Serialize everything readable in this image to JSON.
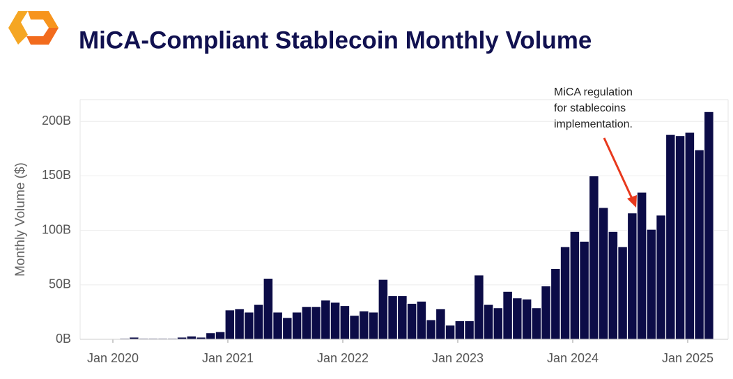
{
  "chart_data": {
    "type": "bar",
    "title": "MiCA-Compliant Stablecoin Monthly Volume",
    "y_label": "Monthly Volume ($)",
    "annotation": [
      "MiCA regulation",
      "for stablecoins",
      "implementation."
    ],
    "color": "#0c0c47",
    "x": [
      "Jan 2020",
      "Feb 2020",
      "Mar 2020",
      "Apr 2020",
      "May 2020",
      "Jun 2020",
      "Jul 2020",
      "Aug 2020",
      "Sep 2020",
      "Oct 2020",
      "Nov 2020",
      "Dec 2020",
      "Jan 2021",
      "Feb 2021",
      "Mar 2021",
      "Apr 2021",
      "May 2021",
      "Jun 2021",
      "Jul 2021",
      "Aug 2021",
      "Sep 2021",
      "Oct 2021",
      "Nov 2021",
      "Dec 2021",
      "Jan 2022",
      "Feb 2022",
      "Mar 2022",
      "Apr 2022",
      "May 2022",
      "Jun 2022",
      "Jul 2022",
      "Aug 2022",
      "Sep 2022",
      "Oct 2022",
      "Nov 2022",
      "Dec 2022",
      "Jan 2023",
      "Feb 2023",
      "Mar 2023",
      "Apr 2023",
      "May 2023",
      "Jun 2023",
      "Jul 2023",
      "Aug 2023",
      "Sep 2023",
      "Oct 2023",
      "Nov 2023",
      "Dec 2023",
      "Jan 2024",
      "Feb 2024",
      "Mar 2024",
      "Apr 2024",
      "May 2024",
      "Jun 2024",
      "Jul 2024",
      "Aug 2024",
      "Sep 2024",
      "Oct 2024",
      "Nov 2024",
      "Dec 2024",
      "Jan 2025",
      "Feb 2025",
      "Mar 2025"
    ],
    "values": [
      0.5,
      1,
      2,
      1,
      1,
      1,
      1,
      2,
      3,
      2,
      6,
      7,
      27,
      28,
      25,
      32,
      56,
      25,
      20,
      25,
      30,
      30,
      36,
      34,
      31,
      22,
      26,
      25,
      55,
      40,
      40,
      33,
      35,
      18,
      28,
      13,
      17,
      17,
      59,
      32,
      29,
      44,
      38,
      37,
      29,
      49,
      65,
      85,
      99,
      90,
      150,
      121,
      99,
      85,
      116,
      135,
      101,
      114,
      188,
      187,
      190,
      174,
      209
    ],
    "ylim": [
      0,
      220
    ],
    "yticks": [
      {
        "value": 0,
        "label": "0B"
      },
      {
        "value": 50,
        "label": "50B"
      },
      {
        "value": 100,
        "label": "100B"
      },
      {
        "value": 150,
        "label": "150B"
      },
      {
        "value": 200,
        "label": "200B"
      }
    ],
    "xticks": [
      "Jan 2020",
      "Jan 2021",
      "Jan 2022",
      "Jan 2023",
      "Jan 2024",
      "Jan 2025"
    ],
    "grid": true
  }
}
